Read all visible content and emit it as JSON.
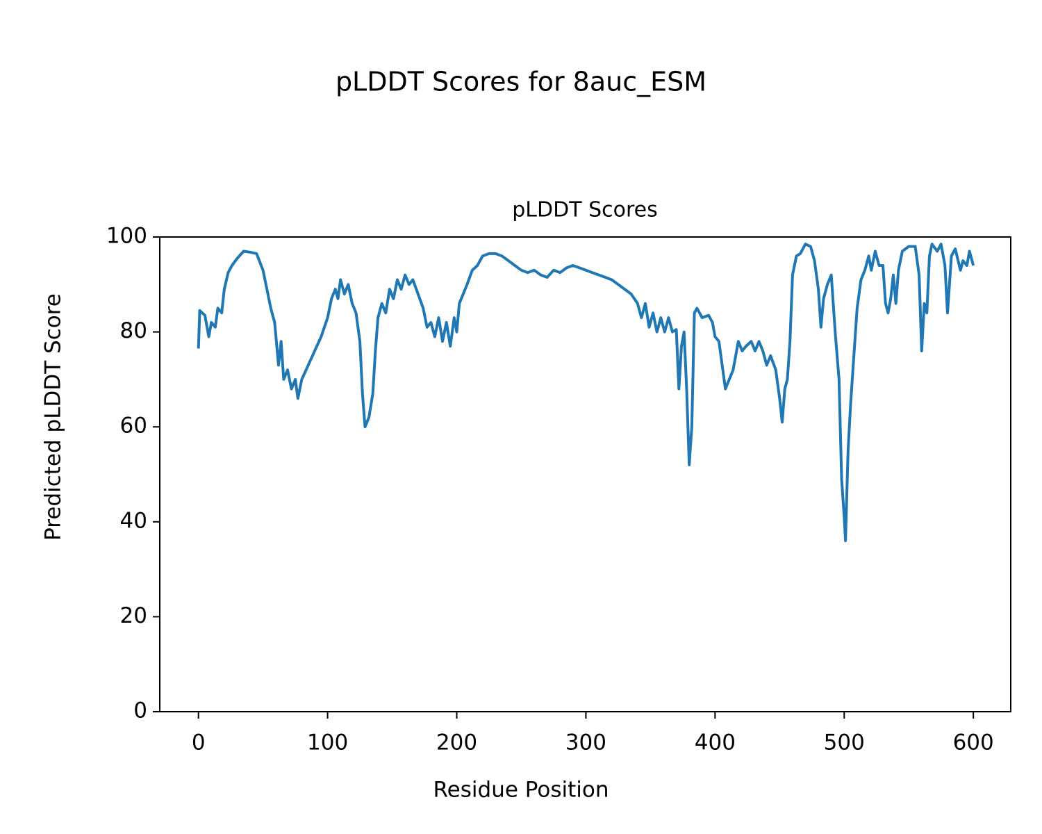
{
  "chart_data": {
    "type": "line",
    "title": "pLDDT Scores for 8auc_ESM",
    "subtitle": "pLDDT Scores",
    "xlabel": "Residue Position",
    "ylabel": "Predicted pLDDT Score",
    "xlim": [
      -29.95,
      628.95
    ],
    "ylim": [
      0,
      100
    ],
    "xticks": [
      0,
      100,
      200,
      300,
      400,
      500,
      600
    ],
    "yticks": [
      0,
      20,
      40,
      60,
      80,
      100
    ],
    "grid": false,
    "x": [
      0,
      1,
      5,
      8,
      10,
      13,
      15,
      18,
      20,
      23,
      26,
      30,
      35,
      40,
      45,
      50,
      53,
      56,
      59,
      62,
      64,
      66,
      69,
      72,
      75,
      77,
      80,
      85,
      90,
      95,
      100,
      103,
      106,
      108,
      110,
      113,
      116,
      119,
      122,
      125,
      127,
      129,
      132,
      135,
      137,
      139,
      142,
      145,
      148,
      151,
      154,
      157,
      160,
      163,
      166,
      170,
      174,
      177,
      180,
      183,
      186,
      189,
      192,
      195,
      198,
      200,
      202,
      205,
      208,
      212,
      216,
      220,
      225,
      230,
      235,
      240,
      245,
      250,
      255,
      260,
      265,
      270,
      275,
      280,
      285,
      290,
      295,
      300,
      305,
      310,
      315,
      320,
      325,
      330,
      335,
      340,
      343,
      346,
      349,
      352,
      355,
      358,
      361,
      364,
      367,
      370,
      372,
      374,
      376,
      378,
      380,
      382,
      384,
      386,
      390,
      395,
      398,
      400,
      403,
      405,
      408,
      411,
      414,
      418,
      421,
      424,
      428,
      431,
      434,
      437,
      440,
      443,
      447,
      450,
      452,
      454,
      456,
      458,
      460,
      463,
      466,
      470,
      474,
      477,
      480,
      482,
      484,
      487,
      490,
      493,
      496,
      498,
      500,
      501,
      503,
      505,
      507,
      510,
      513,
      516,
      519,
      521,
      524,
      527,
      530,
      532,
      534,
      536,
      538,
      540,
      542,
      545,
      550,
      555,
      558,
      560,
      562,
      564,
      566,
      568,
      572,
      575,
      578,
      580,
      583,
      586,
      590,
      592,
      595,
      597,
      600
    ],
    "series": [
      {
        "name": "pLDDT",
        "color": "#1f77b4",
        "values": [
          76.5,
          84.5,
          83.5,
          79,
          82,
          81,
          85,
          84,
          89,
          92.5,
          94,
          95.5,
          97,
          96.8,
          96.5,
          93,
          89,
          85,
          82,
          73,
          78,
          70,
          72,
          68,
          70,
          66,
          70,
          73,
          76,
          79,
          83,
          87,
          89,
          87,
          91,
          88,
          90,
          86,
          84,
          78,
          67,
          60,
          62,
          67,
          76,
          83,
          86,
          84,
          89,
          87,
          91,
          89,
          92,
          90,
          91,
          88,
          85,
          81,
          82,
          79,
          83,
          78,
          82,
          77,
          83,
          80,
          86,
          88,
          90,
          93,
          94,
          96,
          96.5,
          96.5,
          96,
          95,
          94,
          93,
          92.5,
          93,
          92,
          91.5,
          93,
          92.5,
          93.5,
          94,
          93.5,
          93,
          92.5,
          92,
          91.5,
          91,
          90,
          89,
          88,
          86,
          83,
          86,
          81,
          84,
          80,
          83,
          80,
          83,
          80,
          80.5,
          68,
          77,
          80,
          68,
          52,
          60,
          84,
          85,
          83,
          83.5,
          82,
          79,
          78,
          74,
          68,
          70,
          72,
          78,
          76,
          77,
          78,
          76,
          78,
          76,
          73,
          75,
          72,
          66,
          61,
          68,
          70,
          78,
          92,
          96,
          96.5,
          98.5,
          98,
          95,
          89,
          81,
          87,
          90,
          92,
          80,
          70,
          49,
          41,
          36,
          55,
          65,
          73,
          85,
          91,
          93,
          96,
          93,
          97,
          94,
          94,
          86,
          84,
          87,
          92,
          86,
          93,
          97,
          98,
          98,
          92,
          76,
          86,
          84,
          96,
          98.5,
          97,
          98.5,
          94,
          84,
          96,
          97.5,
          93,
          95,
          94,
          97,
          94
        ]
      }
    ]
  }
}
